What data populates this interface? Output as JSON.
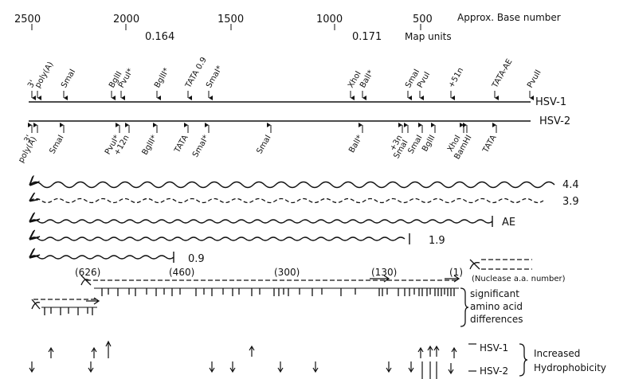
{
  "scale": {
    "base_ticks": [
      "2500",
      "2000",
      "1500",
      "1000",
      "500"
    ],
    "base_label": "Approx. Base number",
    "map_units": [
      "0.164",
      "0.171"
    ],
    "map_label": "Map units"
  },
  "genomes": [
    {
      "name": "HSV-1",
      "sites": [
        "3'",
        "poly(A)",
        "SmaI",
        "BglII",
        "PvuI*",
        "BglII*",
        "TATA 0.9",
        "SmaI*",
        "XhoI",
        "BalI*",
        "SmaI",
        "PvuI",
        "+51n",
        "TATA-AE",
        "PvuII"
      ]
    },
    {
      "name": "HSV-2",
      "sites": [
        "3'",
        "poly(A)",
        "SmaI",
        "PvuI*",
        "+12n",
        "BglII*",
        "TATA",
        "SmaI*",
        "SmaI",
        "BalI*",
        "+3n",
        "SmaI",
        "SmaI",
        "BglII",
        "XhoI",
        "BamHI",
        "TATA"
      ]
    }
  ],
  "transcripts": [
    "4.4",
    "3.9",
    "AE",
    "1.9",
    "0.9"
  ],
  "nuclease": {
    "aa_numbers": [
      "(626)",
      "(460)",
      "(300)",
      "(130)",
      "(1)"
    ],
    "legend": "(Nuclease a.a. number)"
  },
  "aa_diff_label": [
    "significant",
    "amino acid",
    "differences"
  ],
  "hydrophobicity": {
    "series": [
      "HSV-1",
      "HSV-2"
    ],
    "label": [
      "Increased",
      "Hydrophobicity"
    ]
  },
  "colors": {
    "ink": "#111111",
    "background": "#ffffff"
  }
}
